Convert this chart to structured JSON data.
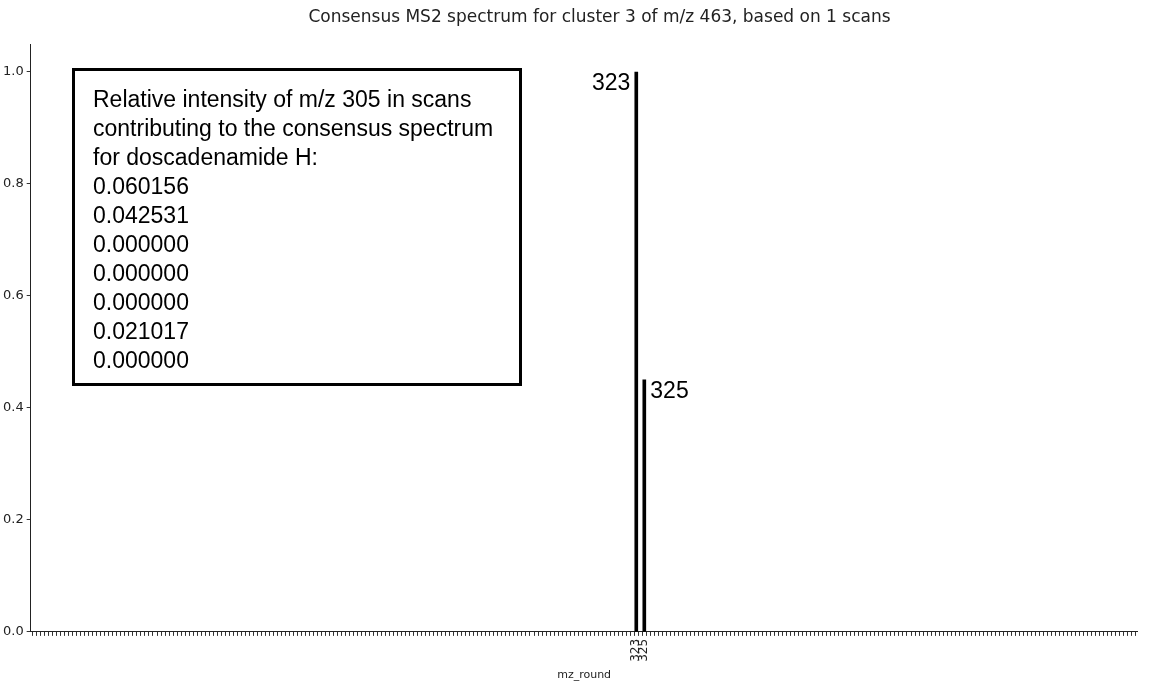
{
  "chart_data": {
    "type": "bar",
    "title": "Consensus MS2 spectrum for cluster 3 of m/z 463, based on 1 scans",
    "xlabel": "mz_round",
    "x": [
      323,
      325
    ],
    "values": [
      1.0,
      0.45
    ],
    "color": "#000000",
    "xlim": [
      172,
      448
    ],
    "xticks": [
      {
        "value": 172,
        "label": null
      },
      {
        "value": 173,
        "label": null
      },
      {
        "value": 174,
        "label": null
      },
      {
        "value": 175,
        "label": null
      },
      {
        "value": 176,
        "label": null
      },
      {
        "value": 177,
        "label": null
      },
      {
        "value": 178,
        "label": null
      },
      {
        "value": 179,
        "label": null
      },
      {
        "value": 180,
        "label": null
      },
      {
        "value": 181,
        "label": null
      },
      {
        "value": 182,
        "label": null
      },
      {
        "value": 183,
        "label": null
      },
      {
        "value": 184,
        "label": null
      },
      {
        "value": 185,
        "label": null
      },
      {
        "value": 186,
        "label": null
      },
      {
        "value": 187,
        "label": null
      },
      {
        "value": 188,
        "label": null
      },
      {
        "value": 189,
        "label": null
      },
      {
        "value": 190,
        "label": null
      },
      {
        "value": 191,
        "label": null
      },
      {
        "value": 192,
        "label": null
      },
      {
        "value": 193,
        "label": null
      },
      {
        "value": 194,
        "label": null
      },
      {
        "value": 195,
        "label": null
      },
      {
        "value": 196,
        "label": null
      },
      {
        "value": 197,
        "label": null
      },
      {
        "value": 198,
        "label": null
      },
      {
        "value": 199,
        "label": null
      },
      {
        "value": 200,
        "label": null
      },
      {
        "value": 201,
        "label": null
      },
      {
        "value": 202,
        "label": null
      },
      {
        "value": 203,
        "label": null
      },
      {
        "value": 204,
        "label": null
      },
      {
        "value": 205,
        "label": null
      },
      {
        "value": 206,
        "label": null
      },
      {
        "value": 207,
        "label": null
      },
      {
        "value": 208,
        "label": null
      },
      {
        "value": 209,
        "label": null
      },
      {
        "value": 210,
        "label": null
      },
      {
        "value": 211,
        "label": null
      },
      {
        "value": 212,
        "label": null
      },
      {
        "value": 213,
        "label": null
      },
      {
        "value": 214,
        "label": null
      },
      {
        "value": 215,
        "label": null
      },
      {
        "value": 216,
        "label": null
      },
      {
        "value": 217,
        "label": null
      },
      {
        "value": 218,
        "label": null
      },
      {
        "value": 219,
        "label": null
      },
      {
        "value": 220,
        "label": null
      },
      {
        "value": 221,
        "label": null
      },
      {
        "value": 222,
        "label": null
      },
      {
        "value": 223,
        "label": null
      },
      {
        "value": 224,
        "label": null
      },
      {
        "value": 225,
        "label": null
      },
      {
        "value": 226,
        "label": null
      },
      {
        "value": 227,
        "label": null
      },
      {
        "value": 228,
        "label": null
      },
      {
        "value": 229,
        "label": null
      },
      {
        "value": 230,
        "label": null
      },
      {
        "value": 231,
        "label": null
      },
      {
        "value": 232,
        "label": null
      },
      {
        "value": 233,
        "label": null
      },
      {
        "value": 234,
        "label": null
      },
      {
        "value": 235,
        "label": null
      },
      {
        "value": 236,
        "label": null
      },
      {
        "value": 237,
        "label": null
      },
      {
        "value": 238,
        "label": null
      },
      {
        "value": 239,
        "label": null
      },
      {
        "value": 240,
        "label": null
      },
      {
        "value": 241,
        "label": null
      },
      {
        "value": 242,
        "label": null
      },
      {
        "value": 243,
        "label": null
      },
      {
        "value": 244,
        "label": null
      },
      {
        "value": 245,
        "label": null
      },
      {
        "value": 246,
        "label": null
      },
      {
        "value": 247,
        "label": null
      },
      {
        "value": 248,
        "label": null
      },
      {
        "value": 249,
        "label": null
      },
      {
        "value": 250,
        "label": null
      },
      {
        "value": 251,
        "label": null
      },
      {
        "value": 252,
        "label": null
      },
      {
        "value": 253,
        "label": null
      },
      {
        "value": 254,
        "label": null
      },
      {
        "value": 255,
        "label": null
      },
      {
        "value": 256,
        "label": null
      },
      {
        "value": 257,
        "label": null
      },
      {
        "value": 258,
        "label": null
      },
      {
        "value": 259,
        "label": null
      },
      {
        "value": 260,
        "label": null
      },
      {
        "value": 261,
        "label": null
      },
      {
        "value": 262,
        "label": null
      },
      {
        "value": 263,
        "label": null
      },
      {
        "value": 264,
        "label": null
      },
      {
        "value": 265,
        "label": null
      },
      {
        "value": 266,
        "label": null
      },
      {
        "value": 267,
        "label": null
      },
      {
        "value": 268,
        "label": null
      },
      {
        "value": 269,
        "label": null
      },
      {
        "value": 270,
        "label": null
      },
      {
        "value": 271,
        "label": null
      },
      {
        "value": 272,
        "label": null
      },
      {
        "value": 273,
        "label": null
      },
      {
        "value": 274,
        "label": null
      },
      {
        "value": 275,
        "label": null
      },
      {
        "value": 276,
        "label": null
      },
      {
        "value": 277,
        "label": null
      },
      {
        "value": 278,
        "label": null
      },
      {
        "value": 279,
        "label": null
      },
      {
        "value": 280,
        "label": null
      },
      {
        "value": 281,
        "label": null
      },
      {
        "value": 282,
        "label": null
      },
      {
        "value": 283,
        "label": null
      },
      {
        "value": 284,
        "label": null
      },
      {
        "value": 285,
        "label": null
      },
      {
        "value": 286,
        "label": null
      },
      {
        "value": 287,
        "label": null
      },
      {
        "value": 288,
        "label": null
      },
      {
        "value": 289,
        "label": null
      },
      {
        "value": 290,
        "label": null
      },
      {
        "value": 291,
        "label": null
      },
      {
        "value": 292,
        "label": null
      },
      {
        "value": 293,
        "label": null
      },
      {
        "value": 294,
        "label": null
      },
      {
        "value": 295,
        "label": null
      },
      {
        "value": 296,
        "label": null
      },
      {
        "value": 297,
        "label": null
      },
      {
        "value": 298,
        "label": null
      },
      {
        "value": 299,
        "label": null
      },
      {
        "value": 300,
        "label": null
      },
      {
        "value": 301,
        "label": null
      },
      {
        "value": 302,
        "label": null
      },
      {
        "value": 303,
        "label": null
      },
      {
        "value": 304,
        "label": null
      },
      {
        "value": 305,
        "label": null
      },
      {
        "value": 306,
        "label": null
      },
      {
        "value": 307,
        "label": null
      },
      {
        "value": 308,
        "label": null
      },
      {
        "value": 309,
        "label": null
      },
      {
        "value": 310,
        "label": null
      },
      {
        "value": 311,
        "label": null
      },
      {
        "value": 312,
        "label": null
      },
      {
        "value": 313,
        "label": null
      },
      {
        "value": 314,
        "label": null
      },
      {
        "value": 315,
        "label": null
      },
      {
        "value": 316,
        "label": null
      },
      {
        "value": 317,
        "label": null
      },
      {
        "value": 318,
        "label": null
      },
      {
        "value": 319,
        "label": null
      },
      {
        "value": 320,
        "label": null
      },
      {
        "value": 321,
        "label": null
      },
      {
        "value": 322,
        "label": null
      },
      {
        "value": 323,
        "label": "323"
      },
      {
        "value": 324,
        "label": null
      },
      {
        "value": 325,
        "label": "325"
      },
      {
        "value": 326,
        "label": null
      },
      {
        "value": 327,
        "label": null
      },
      {
        "value": 328,
        "label": null
      },
      {
        "value": 329,
        "label": null
      },
      {
        "value": 330,
        "label": null
      },
      {
        "value": 331,
        "label": null
      },
      {
        "value": 332,
        "label": null
      },
      {
        "value": 333,
        "label": null
      },
      {
        "value": 334,
        "label": null
      },
      {
        "value": 335,
        "label": null
      },
      {
        "value": 336,
        "label": null
      },
      {
        "value": 337,
        "label": null
      },
      {
        "value": 338,
        "label": null
      },
      {
        "value": 339,
        "label": null
      },
      {
        "value": 340,
        "label": null
      },
      {
        "value": 341,
        "label": null
      },
      {
        "value": 342,
        "label": null
      },
      {
        "value": 343,
        "label": null
      },
      {
        "value": 344,
        "label": null
      },
      {
        "value": 345,
        "label": null
      },
      {
        "value": 346,
        "label": null
      },
      {
        "value": 347,
        "label": null
      },
      {
        "value": 348,
        "label": null
      },
      {
        "value": 349,
        "label": null
      },
      {
        "value": 350,
        "label": null
      },
      {
        "value": 351,
        "label": null
      },
      {
        "value": 352,
        "label": null
      },
      {
        "value": 353,
        "label": null
      },
      {
        "value": 354,
        "label": null
      },
      {
        "value": 355,
        "label": null
      },
      {
        "value": 356,
        "label": null
      },
      {
        "value": 357,
        "label": null
      },
      {
        "value": 358,
        "label": null
      },
      {
        "value": 359,
        "label": null
      },
      {
        "value": 360,
        "label": null
      },
      {
        "value": 361,
        "label": null
      },
      {
        "value": 362,
        "label": null
      },
      {
        "value": 363,
        "label": null
      },
      {
        "value": 364,
        "label": null
      },
      {
        "value": 365,
        "label": null
      },
      {
        "value": 366,
        "label": null
      },
      {
        "value": 367,
        "label": null
      },
      {
        "value": 368,
        "label": null
      },
      {
        "value": 369,
        "label": null
      },
      {
        "value": 370,
        "label": null
      },
      {
        "value": 371,
        "label": null
      },
      {
        "value": 372,
        "label": null
      },
      {
        "value": 373,
        "label": null
      },
      {
        "value": 374,
        "label": null
      },
      {
        "value": 375,
        "label": null
      },
      {
        "value": 376,
        "label": null
      },
      {
        "value": 377,
        "label": null
      },
      {
        "value": 378,
        "label": null
      },
      {
        "value": 379,
        "label": null
      },
      {
        "value": 380,
        "label": null
      },
      {
        "value": 381,
        "label": null
      },
      {
        "value": 382,
        "label": null
      },
      {
        "value": 383,
        "label": null
      },
      {
        "value": 384,
        "label": null
      },
      {
        "value": 385,
        "label": null
      },
      {
        "value": 386,
        "label": null
      },
      {
        "value": 387,
        "label": null
      },
      {
        "value": 388,
        "label": null
      },
      {
        "value": 389,
        "label": null
      },
      {
        "value": 390,
        "label": null
      },
      {
        "value": 391,
        "label": null
      },
      {
        "value": 392,
        "label": null
      },
      {
        "value": 393,
        "label": null
      },
      {
        "value": 394,
        "label": null
      },
      {
        "value": 395,
        "label": null
      },
      {
        "value": 396,
        "label": null
      },
      {
        "value": 397,
        "label": null
      },
      {
        "value": 398,
        "label": null
      },
      {
        "value": 399,
        "label": null
      },
      {
        "value": 400,
        "label": null
      },
      {
        "value": 401,
        "label": null
      },
      {
        "value": 402,
        "label": null
      },
      {
        "value": 403,
        "label": null
      },
      {
        "value": 404,
        "label": null
      },
      {
        "value": 405,
        "label": null
      },
      {
        "value": 406,
        "label": null
      },
      {
        "value": 407,
        "label": null
      },
      {
        "value": 408,
        "label": null
      },
      {
        "value": 409,
        "label": null
      },
      {
        "value": 410,
        "label": null
      },
      {
        "value": 411,
        "label": null
      },
      {
        "value": 412,
        "label": null
      },
      {
        "value": 413,
        "label": null
      },
      {
        "value": 414,
        "label": null
      },
      {
        "value": 415,
        "label": null
      },
      {
        "value": 416,
        "label": null
      },
      {
        "value": 417,
        "label": null
      },
      {
        "value": 418,
        "label": null
      },
      {
        "value": 419,
        "label": null
      },
      {
        "value": 420,
        "label": null
      },
      {
        "value": 421,
        "label": null
      },
      {
        "value": 422,
        "label": null
      },
      {
        "value": 423,
        "label": null
      },
      {
        "value": 424,
        "label": null
      },
      {
        "value": 425,
        "label": null
      },
      {
        "value": 426,
        "label": null
      },
      {
        "value": 427,
        "label": null
      },
      {
        "value": 428,
        "label": null
      },
      {
        "value": 429,
        "label": null
      },
      {
        "value": 430,
        "label": null
      },
      {
        "value": 431,
        "label": null
      },
      {
        "value": 432,
        "label": null
      },
      {
        "value": 433,
        "label": null
      },
      {
        "value": 434,
        "label": null
      },
      {
        "value": 435,
        "label": null
      },
      {
        "value": 436,
        "label": null
      },
      {
        "value": 437,
        "label": null
      },
      {
        "value": 438,
        "label": null
      },
      {
        "value": 439,
        "label": null
      },
      {
        "value": 440,
        "label": null
      },
      {
        "value": 441,
        "label": null
      },
      {
        "value": 442,
        "label": null
      },
      {
        "value": 443,
        "label": null
      },
      {
        "value": 444,
        "label": null
      },
      {
        "value": 445,
        "label": null
      },
      {
        "value": 446,
        "label": null
      },
      {
        "value": 447,
        "label": null
      }
    ],
    "ylim": [
      0,
      1.05
    ],
    "yticks": [
      {
        "value": 0,
        "label": "0.0"
      },
      0.2,
      0.4,
      0.6,
      0.8,
      {
        "value": 1,
        "label": "1.0"
      }
    ],
    "annotations": [
      {
        "text": "323",
        "x": 323,
        "y": 1.0
      },
      {
        "text": "325",
        "x": 325,
        "y": 0.45
      },
      "Relative intensity of m/z 305 in scans contributing to the consensus spectrum for doscadenamide H:\n0.060156\n0.042531\n0.000000\n0.000000\n0.000000\n0.021017\n0.000000"
    ]
  }
}
